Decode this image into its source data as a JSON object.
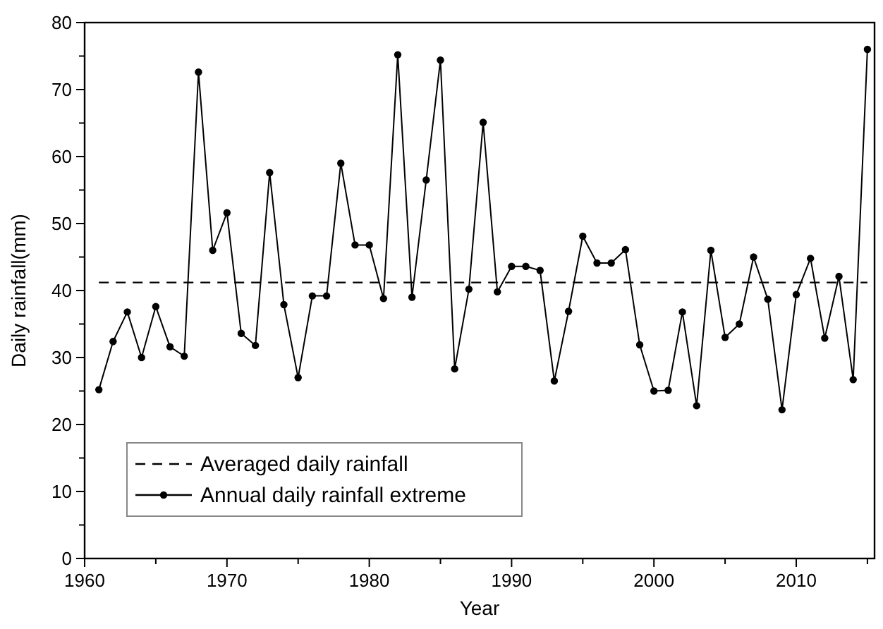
{
  "chart_data": {
    "type": "line",
    "xlabel": "Year",
    "ylabel": "Daily rainfall(mm)",
    "x": [
      1961,
      1962,
      1963,
      1964,
      1965,
      1966,
      1967,
      1968,
      1969,
      1970,
      1971,
      1972,
      1973,
      1974,
      1975,
      1976,
      1977,
      1978,
      1979,
      1980,
      1981,
      1982,
      1983,
      1984,
      1985,
      1986,
      1987,
      1988,
      1989,
      1990,
      1991,
      1992,
      1993,
      1994,
      1995,
      1996,
      1997,
      1998,
      1999,
      2000,
      2001,
      2002,
      2003,
      2004,
      2005,
      2006,
      2007,
      2008,
      2009,
      2010,
      2011,
      2012,
      2013,
      2014,
      2015
    ],
    "series": [
      {
        "name": "Annual daily rainfall extreme",
        "color": "#000000",
        "marker": "circle",
        "line_style": "solid",
        "values": [
          25.2,
          32.4,
          36.8,
          30,
          37.6,
          31.6,
          30.2,
          72.6,
          46,
          51.6,
          33.6,
          31.8,
          57.6,
          37.9,
          27,
          39.2,
          39.2,
          59,
          46.8,
          46.8,
          38.8,
          75.2,
          39,
          56.5,
          74.4,
          28.3,
          40.2,
          65.1,
          39.8,
          43.6,
          43.6,
          43,
          26.5,
          36.9,
          48.1,
          44.1,
          44.1,
          46.1,
          31.9,
          25,
          25.1,
          36.8,
          22.8,
          46,
          33,
          35,
          45,
          38.7,
          22.2,
          39.4,
          44.8,
          32.9,
          42.1,
          26.7,
          76
        ]
      }
    ],
    "ref_lines": [
      {
        "axis": "y",
        "value": 41.2,
        "label": "Averaged daily rainfall",
        "color": "#000000",
        "line_style": "dashed"
      }
    ],
    "xlim": [
      1960,
      2015.5
    ],
    "xticks": [
      1960,
      {
        "value": 1965,
        "label": null
      },
      1970,
      {
        "value": 1975,
        "label": null
      },
      1980,
      {
        "value": 1985,
        "label": null
      },
      1990,
      {
        "value": 1995,
        "label": null
      },
      2000,
      {
        "value": 2005,
        "label": null
      },
      2010,
      {
        "value": 2015,
        "label": null
      }
    ],
    "ylim": [
      0,
      80
    ],
    "yticks": [
      0,
      {
        "value": 5,
        "label": null
      },
      10,
      {
        "value": 15,
        "label": null
      },
      20,
      {
        "value": 25,
        "label": null
      },
      30,
      {
        "value": 35,
        "label": null
      },
      40,
      {
        "value": 45,
        "label": null
      },
      50,
      {
        "value": 55,
        "label": null
      },
      60,
      {
        "value": 65,
        "label": null
      },
      70,
      {
        "value": 75,
        "label": null
      },
      80
    ],
    "grid": false,
    "legend": "bottom left"
  }
}
